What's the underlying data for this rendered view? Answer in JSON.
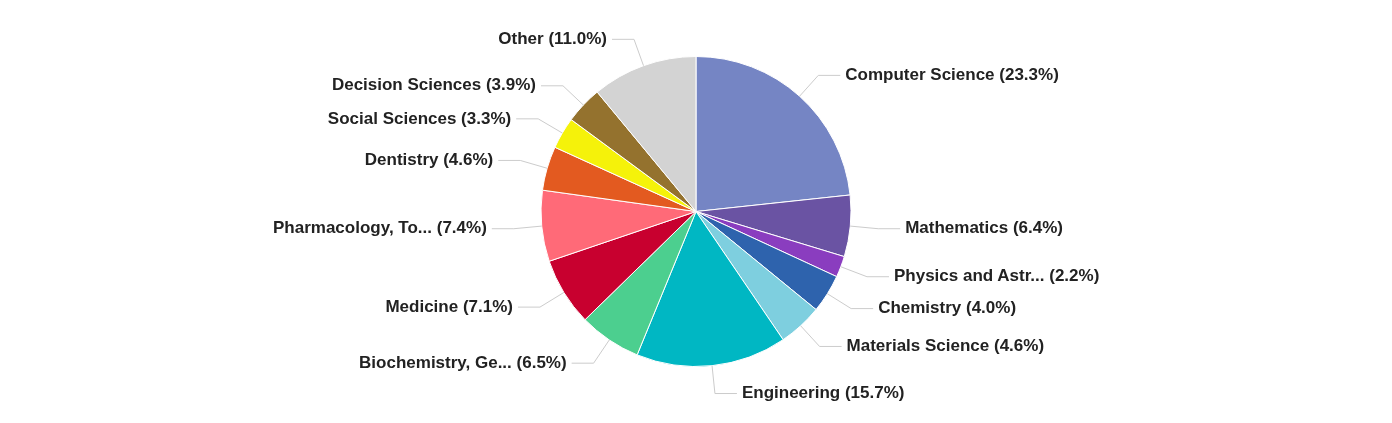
{
  "chart_data": {
    "type": "pie",
    "categories": [
      "Computer Science",
      "Mathematics",
      "Physics and Astr...",
      "Chemistry",
      "Materials Science",
      "Engineering",
      "Biochemistry, Ge...",
      "Medicine",
      "Pharmacology, To...",
      "Dentistry",
      "Social Sciences",
      "Decision Sciences",
      "Other"
    ],
    "values": [
      23.3,
      6.4,
      2.2,
      4.0,
      4.6,
      15.7,
      6.5,
      7.1,
      7.4,
      4.6,
      3.3,
      3.9,
      11.0
    ],
    "value_labels": [
      "(23.3%)",
      "(6.4%)",
      "(2.2%)",
      "(4.0%)",
      "(4.6%)",
      "(15.7%)",
      "(6.5%)",
      "(7.1%)",
      "(7.4%)",
      "(4.6%)",
      "(3.3%)",
      "(3.9%)",
      "(11.0%)"
    ],
    "colors": [
      "#7585c4",
      "#6a53a3",
      "#8a3dbf",
      "#2e63ad",
      "#7ecfdf",
      "#00b7c3",
      "#4ccf8f",
      "#c8002f",
      "#ff6a78",
      "#e35a20",
      "#f5f20a",
      "#94722e",
      "#d3d3d3"
    ],
    "legend": false
  }
}
